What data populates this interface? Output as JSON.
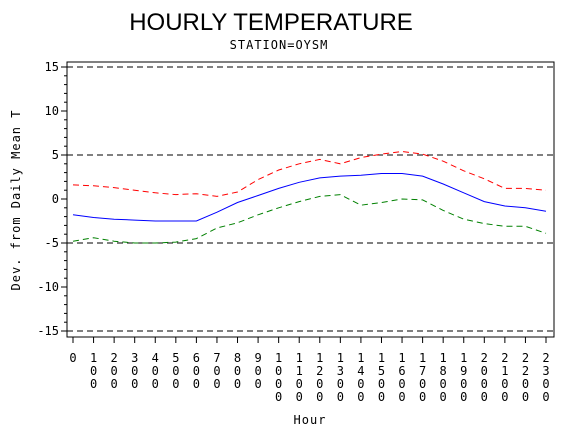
{
  "chart_data": {
    "type": "line",
    "title": "HOURLY TEMPERATURE",
    "subtitle": "STATION=OYSM",
    "xlabel": "Hour",
    "ylabel": "Dev. from Daily Mean T",
    "xlim": [
      0,
      2300
    ],
    "ylim": [
      -15,
      15
    ],
    "x": [
      0,
      100,
      200,
      300,
      400,
      500,
      600,
      700,
      800,
      900,
      1000,
      1100,
      1200,
      1300,
      1400,
      1500,
      1600,
      1700,
      1800,
      1900,
      2000,
      2100,
      2200,
      2300
    ],
    "x_tick_labels": [
      "0",
      "100",
      "200",
      "300",
      "400",
      "500",
      "600",
      "700",
      "800",
      "900",
      "1000",
      "1100",
      "1200",
      "1300",
      "1400",
      "1500",
      "1600",
      "1700",
      "1800",
      "1900",
      "2000",
      "2100",
      "2200",
      "2300"
    ],
    "y_ticks": [
      -15,
      -10,
      -5,
      0,
      5,
      10,
      15
    ],
    "y_tick_labels": [
      "-15",
      "-10",
      "-5",
      "0",
      "5",
      "10",
      "15"
    ],
    "reference_lines": [
      -15,
      -5,
      5,
      15
    ],
    "reference_line_color": "#000000",
    "grid": false,
    "series": [
      {
        "style": "dashed",
        "color": "#ff0000",
        "values": [
          1.6,
          1.5,
          1.3,
          1.0,
          0.7,
          0.5,
          0.6,
          0.3,
          0.8,
          2.2,
          3.3,
          4.0,
          4.5,
          4.0,
          4.7,
          5.1,
          5.4,
          5.1,
          4.3,
          3.2,
          2.3,
          1.2,
          1.2,
          1.0
        ]
      },
      {
        "style": "solid",
        "color": "#0000ff",
        "values": [
          -1.8,
          -2.1,
          -2.3,
          -2.4,
          -2.5,
          -2.5,
          -2.5,
          -1.5,
          -0.4,
          0.4,
          1.2,
          1.9,
          2.4,
          2.6,
          2.7,
          2.9,
          2.9,
          2.6,
          1.7,
          0.7,
          -0.3,
          -0.8,
          -1.0,
          -1.4
        ]
      },
      {
        "style": "dashed",
        "color": "#008000",
        "values": [
          -4.8,
          -4.4,
          -4.8,
          -5.0,
          -5.0,
          -4.9,
          -4.5,
          -3.3,
          -2.7,
          -1.8,
          -1.0,
          -0.3,
          0.3,
          0.5,
          -0.7,
          -0.4,
          0.0,
          -0.1,
          -1.3,
          -2.3,
          -2.8,
          -3.1,
          -3.1,
          -3.9
        ]
      }
    ]
  }
}
